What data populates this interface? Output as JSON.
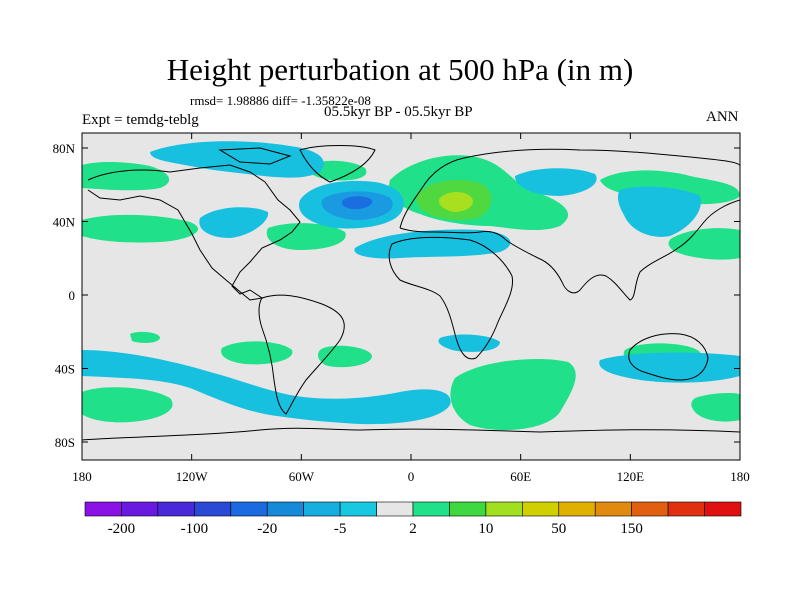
{
  "title": "Height perturbation at 500 hPa (in m)",
  "stats": "rmsd= 1.98886 diff= -1.35822e-08",
  "experiment": "Expt = temdg-teblg",
  "period": "05.5kyr BP - 05.5kyr BP",
  "season": "ANN",
  "lat_ticks": [
    "80N",
    "40N",
    "0",
    "40S",
    "80S"
  ],
  "lon_ticks": [
    "180",
    "120W",
    "60W",
    "0",
    "60E",
    "120E",
    "180"
  ],
  "colorbar": {
    "labels": [
      "-200",
      "-100",
      "-20",
      "-5",
      "2",
      "10",
      "50",
      "150"
    ],
    "colors": [
      "#8a12e6",
      "#6a1ae0",
      "#4a2ad8",
      "#2a4ad6",
      "#1a6ae0",
      "#168ad8",
      "#18aee0",
      "#18c8e0",
      "#e6e6e6",
      "#20e08a",
      "#40d840",
      "#a0e020",
      "#d0d000",
      "#e0b000",
      "#e08a10",
      "#e06010",
      "#e03010",
      "#e01010"
    ]
  },
  "colors": {
    "background": "#e6e6e6",
    "negative_light": "#18c0e0",
    "negative_mid": "#1a9ae0",
    "negative_strong": "#1a6ee0",
    "positive_light": "#20e08a",
    "positive_mid": "#50d840",
    "positive_strong": "#a8e020"
  }
}
